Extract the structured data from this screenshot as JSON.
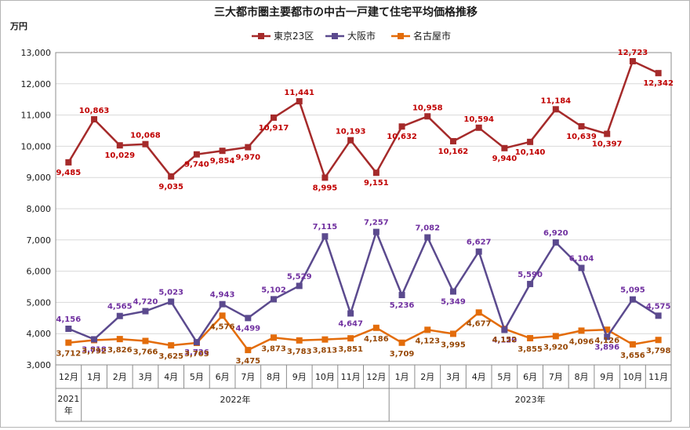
{
  "chart_data": {
    "type": "line",
    "title": "三大都市圏主要都市の中古一戸建て住宅平均価格推移",
    "unit_label": "万円",
    "ylim": [
      3000,
      13000
    ],
    "y_ticks": [
      "3,000",
      "4,000",
      "5,000",
      "6,000",
      "7,000",
      "8,000",
      "9,000",
      "10,000",
      "11,000",
      "12,000",
      "13,000"
    ],
    "categories": [
      "12月",
      "1月",
      "2月",
      "3月",
      "4月",
      "5月",
      "6月",
      "7月",
      "8月",
      "9月",
      "10月",
      "11月",
      "12月",
      "1月",
      "2月",
      "3月",
      "4月",
      "5月",
      "6月",
      "7月",
      "8月",
      "9月",
      "10月",
      "11月"
    ],
    "year_groups": [
      {
        "label": "2021\n年",
        "start": 0,
        "end": 0
      },
      {
        "label": "2022年",
        "start": 1,
        "end": 12
      },
      {
        "label": "2023年",
        "start": 13,
        "end": 23
      }
    ],
    "legend_position": "top",
    "series": [
      {
        "name": "東京23区",
        "color": "#a52a2a",
        "label_color": "#c00000",
        "marker": "square",
        "values": [
          9485,
          10863,
          10029,
          10068,
          9035,
          9740,
          9854,
          9970,
          10917,
          11441,
          8995,
          10193,
          9151,
          10632,
          10958,
          10162,
          10594,
          9940,
          10140,
          11184,
          10639,
          10397,
          12723,
          12342
        ],
        "labels": [
          "9,485",
          "10,863",
          "10,029",
          "10,068",
          "9,035",
          "9,740",
          "9,854",
          "9,970",
          "10,917",
          "11,441",
          "8,995",
          "10,193",
          "9,151",
          "10,632",
          "10,958",
          "10,162",
          "10,594",
          "9,940",
          "10,140",
          "11,184",
          "10,639",
          "10,397",
          "12,723",
          "12,342"
        ]
      },
      {
        "name": "大阪市",
        "color": "#5b4a8e",
        "label_color": "#7030a0",
        "marker": "square",
        "values": [
          4156,
          3818,
          4565,
          4720,
          5023,
          3726,
          4943,
          4499,
          5102,
          5529,
          7115,
          4647,
          7257,
          5236,
          7082,
          5349,
          6627,
          4120,
          5590,
          6920,
          6104,
          3896,
          5095,
          4575
        ],
        "labels": [
          "4,156",
          "3,818",
          "4,565",
          "4,720",
          "5,023",
          "3,726",
          "4,943",
          "4,499",
          "5,102",
          "5,529",
          "7,115",
          "4,647",
          "7,257",
          "5,236",
          "7,082",
          "5,349",
          "6,627",
          "4,120",
          "5,590",
          "6,920",
          "6,104",
          "3,896",
          "5,095",
          "4,575"
        ]
      },
      {
        "name": "名古屋市",
        "color": "#e36c0a",
        "label_color": "#974806",
        "marker": "square",
        "values": [
          3712,
          3792,
          3826,
          3766,
          3625,
          3703,
          4576,
          3475,
          3873,
          3783,
          3813,
          3851,
          4186,
          3709,
          4123,
          3995,
          4677,
          4152,
          3855,
          3920,
          4096,
          4126,
          3656,
          3798
        ],
        "labels": [
          "3,712",
          "3,792",
          "3,826",
          "3,766",
          "3,625",
          "3,703",
          "4,576",
          "3,475",
          "3,873",
          "3,783",
          "3,813",
          "3,851",
          "4,186",
          "3,709",
          "4,123",
          "3,995",
          "4,677",
          "4,152",
          "3,855",
          "3,920",
          "4,096",
          "4,126",
          "3,656",
          "3,798"
        ]
      }
    ]
  }
}
